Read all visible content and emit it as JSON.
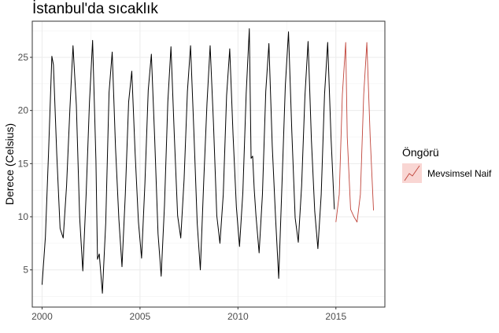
{
  "chart_data": {
    "type": "line",
    "title": "İstanbul'da sıcaklık",
    "xlabel": "",
    "ylabel": "Derece (Celsius)",
    "xlim": [
      1999.5,
      2017.5
    ],
    "ylim": [
      1.5,
      28.4
    ],
    "x_ticks": [
      2000,
      2005,
      2010,
      2015
    ],
    "x_tick_labels": [
      "2000",
      "2005",
      "2010",
      "2015"
    ],
    "y_ticks": [
      5,
      10,
      15,
      20,
      25
    ],
    "y_tick_labels": [
      "5",
      "10",
      "15",
      "20",
      "25"
    ],
    "grid": true,
    "legend": {
      "title": "Öngörü",
      "position": "right"
    },
    "series": [
      {
        "color": "#000000",
        "x": [
          2000.0,
          2000.17,
          2000.33,
          2000.5,
          2000.58,
          2000.75,
          2000.92,
          2001.08,
          2001.25,
          2001.42,
          2001.58,
          2001.75,
          2001.92,
          2002.08,
          2002.25,
          2002.42,
          2002.58,
          2002.75,
          2002.83,
          2002.92,
          2003.08,
          2003.25,
          2003.42,
          2003.58,
          2003.75,
          2003.92,
          2004.08,
          2004.25,
          2004.42,
          2004.58,
          2004.75,
          2004.92,
          2005.08,
          2005.25,
          2005.42,
          2005.58,
          2005.75,
          2005.92,
          2006.08,
          2006.25,
          2006.42,
          2006.58,
          2006.75,
          2006.92,
          2007.08,
          2007.25,
          2007.42,
          2007.58,
          2007.75,
          2007.92,
          2008.08,
          2008.25,
          2008.42,
          2008.58,
          2008.75,
          2008.92,
          2009.08,
          2009.25,
          2009.42,
          2009.58,
          2009.75,
          2009.92,
          2010.08,
          2010.25,
          2010.42,
          2010.58,
          2010.67,
          2010.75,
          2010.83,
          2010.92,
          2011.08,
          2011.25,
          2011.42,
          2011.58,
          2011.75,
          2011.92,
          2012.08,
          2012.25,
          2012.42,
          2012.58,
          2012.75,
          2012.92,
          2013.08,
          2013.25,
          2013.42,
          2013.58,
          2013.75,
          2013.92,
          2014.08,
          2014.25,
          2014.42,
          2014.58,
          2014.75,
          2014.92
        ],
        "y": [
          3.6,
          8.1,
          16.0,
          25.1,
          24.3,
          15.9,
          8.9,
          8.0,
          12.9,
          20.1,
          26.1,
          20.5,
          9.9,
          4.9,
          12.1,
          20.8,
          26.6,
          15.3,
          6.0,
          6.5,
          2.8,
          9.4,
          21.7,
          25.5,
          16.5,
          9.8,
          5.3,
          12.1,
          20.8,
          23.7,
          16.0,
          9.5,
          6.1,
          13.1,
          21.9,
          25.3,
          17.3,
          8.4,
          4.4,
          11.1,
          20.8,
          26.0,
          17.7,
          10.1,
          8.0,
          13.5,
          21.8,
          26.1,
          18.0,
          9.4,
          5.0,
          13.2,
          20.7,
          26.1,
          18.8,
          10.1,
          7.5,
          12.1,
          21.4,
          25.8,
          17.7,
          10.9,
          7.2,
          12.3,
          21.6,
          27.7,
          15.5,
          15.7,
          12.6,
          10.1,
          6.6,
          12.1,
          21.8,
          26.3,
          16.7,
          9.9,
          4.2,
          13.2,
          22.4,
          27.4,
          18.0,
          9.9,
          7.6,
          12.9,
          21.4,
          26.5,
          17.2,
          10.5,
          7.0,
          12.1,
          21.5,
          26.4,
          17.5,
          10.7
        ]
      },
      {
        "name": "Mevsimsel Naif",
        "color": "#c0443a",
        "x": [
          2015.0,
          2015.17,
          2015.33,
          2015.5,
          2015.58,
          2015.75,
          2015.92,
          2016.08,
          2016.25,
          2016.42,
          2016.58,
          2016.75,
          2016.92
        ],
        "y": [
          9.5,
          12.1,
          21.5,
          26.4,
          17.5,
          10.7,
          10.0,
          9.5,
          12.1,
          21.5,
          26.4,
          17.5,
          10.6
        ]
      }
    ]
  }
}
